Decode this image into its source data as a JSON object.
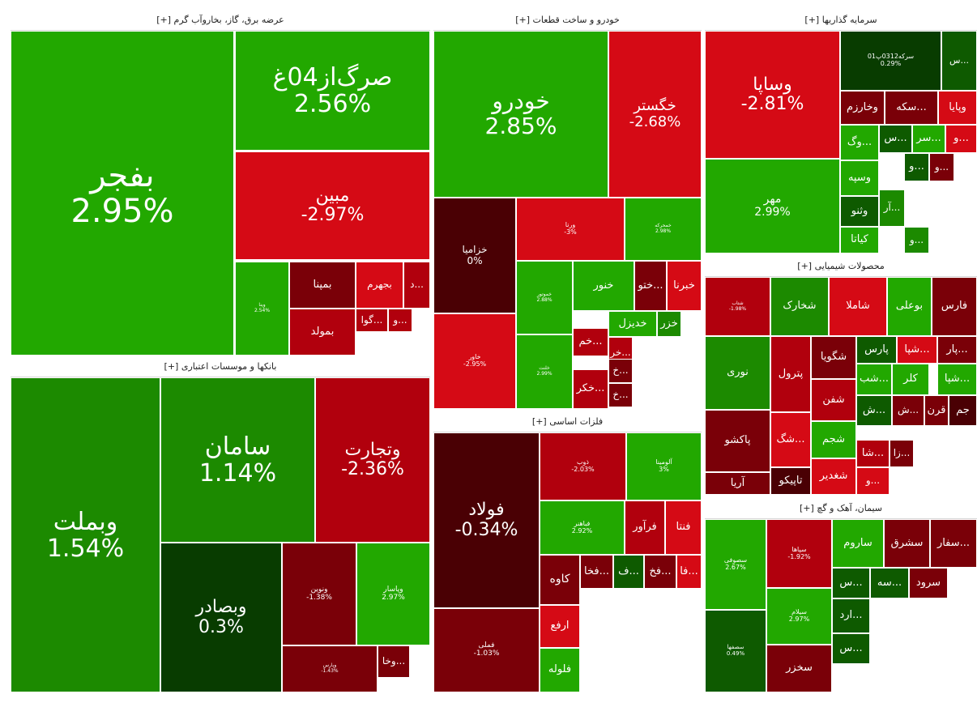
{
  "colors": {
    "strong_green": "#22a800",
    "mid_green": "#1c8a00",
    "dark_green": "#0e5a00",
    "darkest_green": "#083c00",
    "lime": "#33ff00",
    "strong_red": "#d50a15",
    "mid_red": "#b1000d",
    "dark_red": "#7a0008",
    "darkest_red": "#4a0004"
  },
  "chart_data": {
    "type": "treemap",
    "title": "",
    "sectors": [
      {
        "name": "عرضه برق، گاز، بخاروآب گرم [+]",
        "stocks": [
          {
            "symbol": "بفجر",
            "change": "2.95%",
            "value": 2.95
          },
          {
            "symbol": "صرگ‌از04غ",
            "change": "2.56%",
            "value": 2.56
          },
          {
            "symbol": "مبین",
            "change": "-2.97%",
            "value": -2.97
          },
          {
            "symbol": "وینا",
            "change": "2.54%",
            "value": 2.54
          },
          {
            "symbol": "بمپنا",
            "change": "",
            "value": -1.5
          },
          {
            "symbol": "بجهرم",
            "change": "",
            "value": -2.5
          },
          {
            "symbol": "...د",
            "change": "",
            "value": -2.2
          },
          {
            "symbol": "بمولد",
            "change": "",
            "value": -1.8
          },
          {
            "symbol": "...گوا",
            "change": "",
            "value": -2.4
          },
          {
            "symbol": "...و",
            "change": "",
            "value": -2.0
          }
        ]
      },
      {
        "name": "بانکها و موسسات اعتباری [+]",
        "stocks": [
          {
            "symbol": "وبملت",
            "change": "1.54%",
            "value": 1.54
          },
          {
            "symbol": "سامان",
            "change": "1.14%",
            "value": 1.14
          },
          {
            "symbol": "وتجارت",
            "change": "-2.36%",
            "value": -2.36
          },
          {
            "symbol": "وبصادر",
            "change": "0.3%",
            "value": 0.3
          },
          {
            "symbol": "ونوین",
            "change": "-1.38%",
            "value": -1.38
          },
          {
            "symbol": "وپاسار",
            "change": "2.97%",
            "value": 2.97
          },
          {
            "symbol": "وپارس",
            "change": "-1.43%",
            "value": -1.43
          },
          {
            "symbol": "...وخا",
            "change": "",
            "value": -1.0
          }
        ]
      },
      {
        "name": "خودرو و ساخت قطعات [+]",
        "stocks": [
          {
            "symbol": "خودرو",
            "change": "2.85%",
            "value": 2.85
          },
          {
            "symbol": "خگستر",
            "change": "-2.68%",
            "value": -2.68
          },
          {
            "symbol": "خزامیا",
            "change": "0%",
            "value": 0
          },
          {
            "symbol": "ورنا",
            "change": "-3%",
            "value": -3
          },
          {
            "symbol": "خمحرکه",
            "change": "2.98%",
            "value": 2.98
          },
          {
            "symbol": "خاور",
            "change": "-2.95%",
            "value": -2.95
          },
          {
            "symbol": "خموتور",
            "change": "2.88%",
            "value": 2.88
          },
          {
            "symbol": "خنور",
            "change": "",
            "value": 2.5
          },
          {
            "symbol": "...ختو",
            "change": "",
            "value": -1.6
          },
          {
            "symbol": "خبرنا",
            "change": "",
            "value": -2.6
          },
          {
            "symbol": "خدیزل",
            "change": "",
            "value": 2.4
          },
          {
            "symbol": "خزر",
            "change": "",
            "value": 2.2
          },
          {
            "symbol": "خلنت",
            "change": "2.99%",
            "value": 2.99
          },
          {
            "symbol": "...خم",
            "change": "",
            "value": -2.4
          },
          {
            "symbol": "...خر",
            "change": "",
            "value": -2.3
          },
          {
            "symbol": "...خ",
            "change": "",
            "value": -1.5
          },
          {
            "symbol": "...خکر",
            "change": "",
            "value": -2.2
          },
          {
            "symbol": "...خ",
            "change": "",
            "value": -1.4
          }
        ]
      },
      {
        "name": "سرمایه گذاریها [+]",
        "stocks": [
          {
            "symbol": "وساپا",
            "change": "-2.81%",
            "value": -2.81
          },
          {
            "symbol": "سرکه0312پ01",
            "change": "0.29%",
            "value": 0.29
          },
          {
            "symbol": "...س",
            "change": "",
            "value": 0.5
          },
          {
            "symbol": "وخارزم",
            "change": "",
            "value": -1.2
          },
          {
            "symbol": "...سکه",
            "change": "",
            "value": -1.4
          },
          {
            "symbol": "وپایا",
            "change": "",
            "value": -2.5
          },
          {
            "symbol": "مهر",
            "change": "2.99%",
            "value": 2.99
          },
          {
            "symbol": "...وگ",
            "change": "",
            "value": 2.4
          },
          {
            "symbol": "...س",
            "change": "",
            "value": 0.4
          },
          {
            "symbol": "...سر",
            "change": "",
            "value": 2.3
          },
          {
            "symbol": "...و",
            "change": "",
            "value": -2.6
          },
          {
            "symbol": "وسپه",
            "change": "",
            "value": 2.4
          },
          {
            "symbol": "...و",
            "change": "",
            "value": 0.5
          },
          {
            "symbol": "...و",
            "change": "",
            "value": -1.2
          },
          {
            "symbol": "وثنو",
            "change": "",
            "value": 0.6
          },
          {
            "symbol": "...آر",
            "change": "",
            "value": 2.2
          },
          {
            "symbol": "کیاتا",
            "change": "",
            "value": 2.3
          },
          {
            "symbol": "...و",
            "change": "",
            "value": 2.1
          }
        ]
      },
      {
        "name": "محصولات شیمیایی [+]",
        "stocks": [
          {
            "symbol": "شتاب",
            "change": "-1.98%",
            "value": -1.98
          },
          {
            "symbol": "شخارک",
            "change": "",
            "value": 1.6
          },
          {
            "symbol": "شاملا",
            "change": "",
            "value": -2.5
          },
          {
            "symbol": "بوعلی",
            "change": "",
            "value": 2.4
          },
          {
            "symbol": "فارس",
            "change": "",
            "value": -1.5
          },
          {
            "symbol": "نوری",
            "change": "",
            "value": 1.4
          },
          {
            "symbol": "پترول",
            "change": "",
            "value": -2.4
          },
          {
            "symbol": "شگویا",
            "change": "",
            "value": -1.5
          },
          {
            "symbol": "پارس",
            "change": "",
            "value": 0.5
          },
          {
            "symbol": "...شپا",
            "change": "",
            "value": -2.5
          },
          {
            "symbol": "...پار",
            "change": "",
            "value": -1.5
          },
          {
            "symbol": "شفن",
            "change": "",
            "value": -2.4
          },
          {
            "symbol": "...شب",
            "change": "",
            "value": 2.4
          },
          {
            "symbol": "کلر",
            "change": "",
            "value": 2.3
          },
          {
            "symbol": "...شپا",
            "change": "",
            "value": 2.4
          },
          {
            "symbol": "پاکشو",
            "change": "",
            "value": -1.5
          },
          {
            "symbol": "...شگ",
            "change": "",
            "value": -2.5
          },
          {
            "symbol": "شجم",
            "change": "",
            "value": 2.4
          },
          {
            "symbol": "...ش",
            "change": "",
            "value": 0.5
          },
          {
            "symbol": "...ش",
            "change": "",
            "value": -1.2
          },
          {
            "symbol": "قرن",
            "change": "",
            "value": -1.4
          },
          {
            "symbol": "جم",
            "change": "",
            "value": -0.8
          },
          {
            "symbol": "آریا",
            "change": "",
            "value": -1.6
          },
          {
            "symbol": "تاپیکو",
            "change": "",
            "value": -0.6
          },
          {
            "symbol": "شغدیر",
            "change": "",
            "value": -2.6
          },
          {
            "symbol": "...شا",
            "change": "",
            "value": -2.4
          },
          {
            "symbol": "...زا",
            "change": "",
            "value": -1.2
          },
          {
            "symbol": "...و",
            "change": "",
            "value": -2.5
          }
        ]
      },
      {
        "name": "فلزات اساسی [+]",
        "stocks": [
          {
            "symbol": "فولاد",
            "change": "-0.34%",
            "value": -0.34
          },
          {
            "symbol": "ذوب",
            "change": "-2.03%",
            "value": -2.03
          },
          {
            "symbol": "آلومینا",
            "change": "3%",
            "value": 3
          },
          {
            "symbol": "فباهنر",
            "change": "2.92%",
            "value": 2.92
          },
          {
            "symbol": "فرآور",
            "change": "",
            "value": -2.4
          },
          {
            "symbol": "فنتا",
            "change": "",
            "value": -2.5
          },
          {
            "symbol": "فملی",
            "change": "-1.03%",
            "value": -1.03
          },
          {
            "symbol": "کاوه",
            "change": "",
            "value": -1.0
          },
          {
            "symbol": "...فخا",
            "change": "",
            "value": -1.4
          },
          {
            "symbol": "...ف",
            "change": "",
            "value": 0.5
          },
          {
            "symbol": "...فخ",
            "change": "",
            "value": -1.2
          },
          {
            "symbol": "...فا",
            "change": "",
            "value": -2.6
          },
          {
            "symbol": "ارفع",
            "change": "",
            "value": -2.7
          },
          {
            "symbol": "فلوله",
            "change": "",
            "value": 2.4
          }
        ]
      },
      {
        "name": "سیمان، آهک و گچ [+]",
        "stocks": [
          {
            "symbol": "سصوفی",
            "change": "2.67%",
            "value": 2.67
          },
          {
            "symbol": "سپاها",
            "change": "-1.92%",
            "value": -1.92
          },
          {
            "symbol": "ساروم",
            "change": "",
            "value": 2.4
          },
          {
            "symbol": "سشرق",
            "change": "",
            "value": -1.4
          },
          {
            "symbol": "...سفار",
            "change": "",
            "value": -1.5
          },
          {
            "symbol": "...س",
            "change": "",
            "value": 0.6
          },
          {
            "symbol": "...سه",
            "change": "",
            "value": 0.5
          },
          {
            "symbol": "سرود",
            "change": "",
            "value": -1.0
          },
          {
            "symbol": "سیلام",
            "change": "2.97%",
            "value": 2.97
          },
          {
            "symbol": "...ارد",
            "change": "",
            "value": 0.6
          },
          {
            "symbol": "سصفها",
            "change": "0.49%",
            "value": 0.49
          },
          {
            "symbol": "سخزر",
            "change": "",
            "value": -1.0
          },
          {
            "symbol": "...س",
            "change": "",
            "value": 0.6
          }
        ]
      }
    ]
  }
}
